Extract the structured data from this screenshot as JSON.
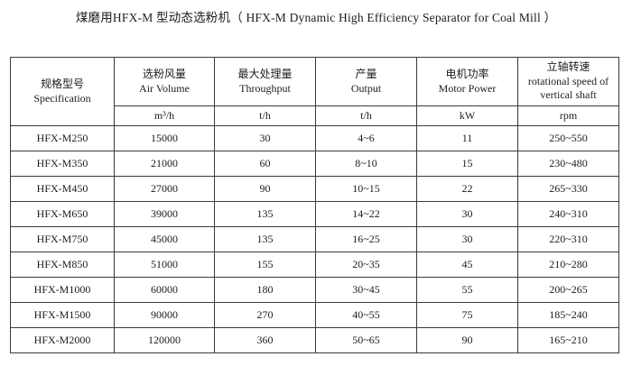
{
  "page": {
    "title": "煤磨用HFX-M 型动态选粉机（ HFX-M Dynamic High Efficiency Separator for Coal Mill ）"
  },
  "colors": {
    "background": "#ffffff",
    "text": "#1c1c1c",
    "border": "#3a3a3a"
  },
  "table": {
    "columns": [
      {
        "zh": "规格型号",
        "en": "Specification",
        "unit": ""
      },
      {
        "zh": "选粉风量",
        "en": "Air Volume",
        "unit": "m³/h"
      },
      {
        "zh": "最大处理量",
        "en": "Throughput",
        "unit": "t/h"
      },
      {
        "zh": "产量",
        "en": "Output",
        "unit": "t/h"
      },
      {
        "zh": "电机功率",
        "en": "Motor Power",
        "unit": "kW"
      },
      {
        "zh": "立轴转速",
        "en": "rotational speed of vertical shaft",
        "unit": "rpm"
      }
    ],
    "rows": [
      [
        "HFX-M250",
        "15000",
        "30",
        "4~6",
        "11",
        "250~550"
      ],
      [
        "HFX-M350",
        "21000",
        "60",
        "8~10",
        "15",
        "230~480"
      ],
      [
        "HFX-M450",
        "27000",
        "90",
        "10~15",
        "22",
        "265~330"
      ],
      [
        "HFX-M650",
        "39000",
        "135",
        "14~22",
        "30",
        "240~310"
      ],
      [
        "HFX-M750",
        "45000",
        "135",
        "16~25",
        "30",
        "220~310"
      ],
      [
        "HFX-M850",
        "51000",
        "155",
        "20~35",
        "45",
        "210~280"
      ],
      [
        "HFX-M1000",
        "60000",
        "180",
        "30~45",
        "55",
        "200~265"
      ],
      [
        "HFX-M1500",
        "90000",
        "270",
        "40~55",
        "75",
        "185~240"
      ],
      [
        "HFX-M2000",
        "120000",
        "360",
        "50~65",
        "90",
        "165~210"
      ]
    ]
  }
}
